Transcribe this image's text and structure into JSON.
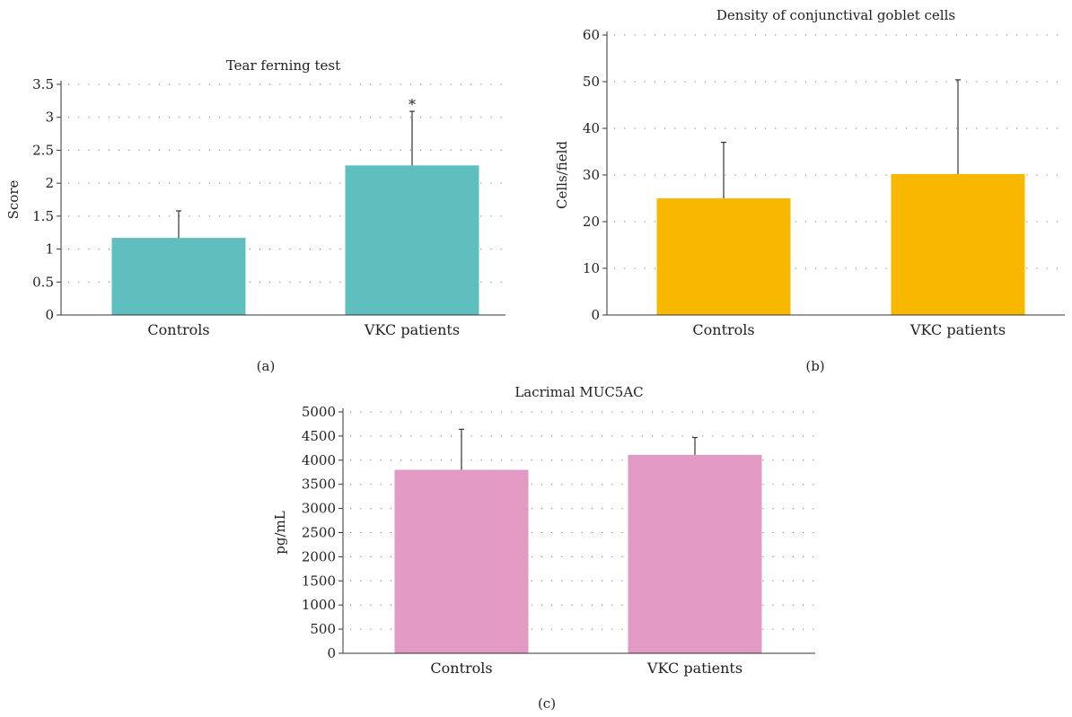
{
  "chart_data": [
    {
      "type": "bar",
      "panel_label": "(a)",
      "title": "Tear ferning test",
      "xlabel": "",
      "ylabel": "Score",
      "categories": [
        "Controls",
        "VKC patients"
      ],
      "values": [
        1.17,
        2.27
      ],
      "error_plus": [
        0.41,
        0.82
      ],
      "annotations": [
        "",
        "*"
      ],
      "ylim": [
        0,
        3.5
      ],
      "yticks": [
        "0",
        "0.5",
        "1",
        "1.5",
        "2",
        "2.5",
        "3",
        "3.5"
      ],
      "grid": "dotted horizontal",
      "color": "#5fbfbf"
    },
    {
      "type": "bar",
      "panel_label": "(b)",
      "title": "Density of conjunctival goblet cells",
      "xlabel": "",
      "ylabel": "Cells/field",
      "categories": [
        "Controls",
        "VKC patients"
      ],
      "values": [
        25,
        30.2
      ],
      "error_plus": [
        12,
        20.2
      ],
      "annotations": [
        "",
        ""
      ],
      "ylim": [
        0,
        60
      ],
      "yticks": [
        "0",
        "10",
        "20",
        "30",
        "40",
        "50",
        "60"
      ],
      "grid": "dotted horizontal",
      "color": "#f8b800"
    },
    {
      "type": "bar",
      "panel_label": "(c)",
      "title": "Lacrimal MUC5AC",
      "xlabel": "",
      "ylabel": "pg/mL",
      "categories": [
        "Controls",
        "VKC patients"
      ],
      "values": [
        3800,
        4110
      ],
      "error_plus": [
        840,
        360
      ],
      "annotations": [
        "",
        ""
      ],
      "ylim": [
        0,
        5000
      ],
      "yticks": [
        "0",
        "500",
        "1000",
        "1500",
        "2000",
        "2500",
        "3000",
        "3500",
        "4000",
        "4500",
        "5000"
      ],
      "grid": "dotted horizontal",
      "color": "#e29ac4"
    }
  ]
}
